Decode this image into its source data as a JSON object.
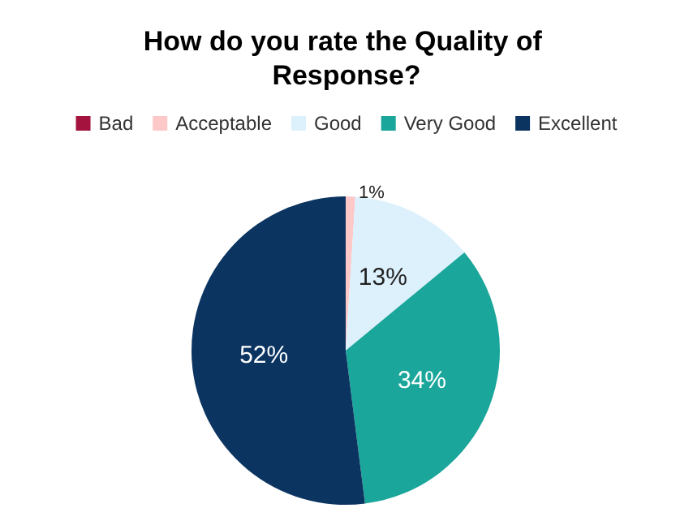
{
  "chart_data": {
    "type": "pie",
    "title": "How do you rate the Quality of Response?",
    "categories": [
      "Bad",
      "Acceptable",
      "Good",
      "Very Good",
      "Excellent"
    ],
    "values": [
      0,
      1,
      13,
      34,
      52
    ],
    "colors": [
      "#a3133d",
      "#fdc8c8",
      "#ddf1fc",
      "#1aa69b",
      "#0b3461"
    ],
    "value_labels": [
      null,
      "1%",
      "13%",
      "34%",
      "52%"
    ],
    "legend": "top"
  }
}
